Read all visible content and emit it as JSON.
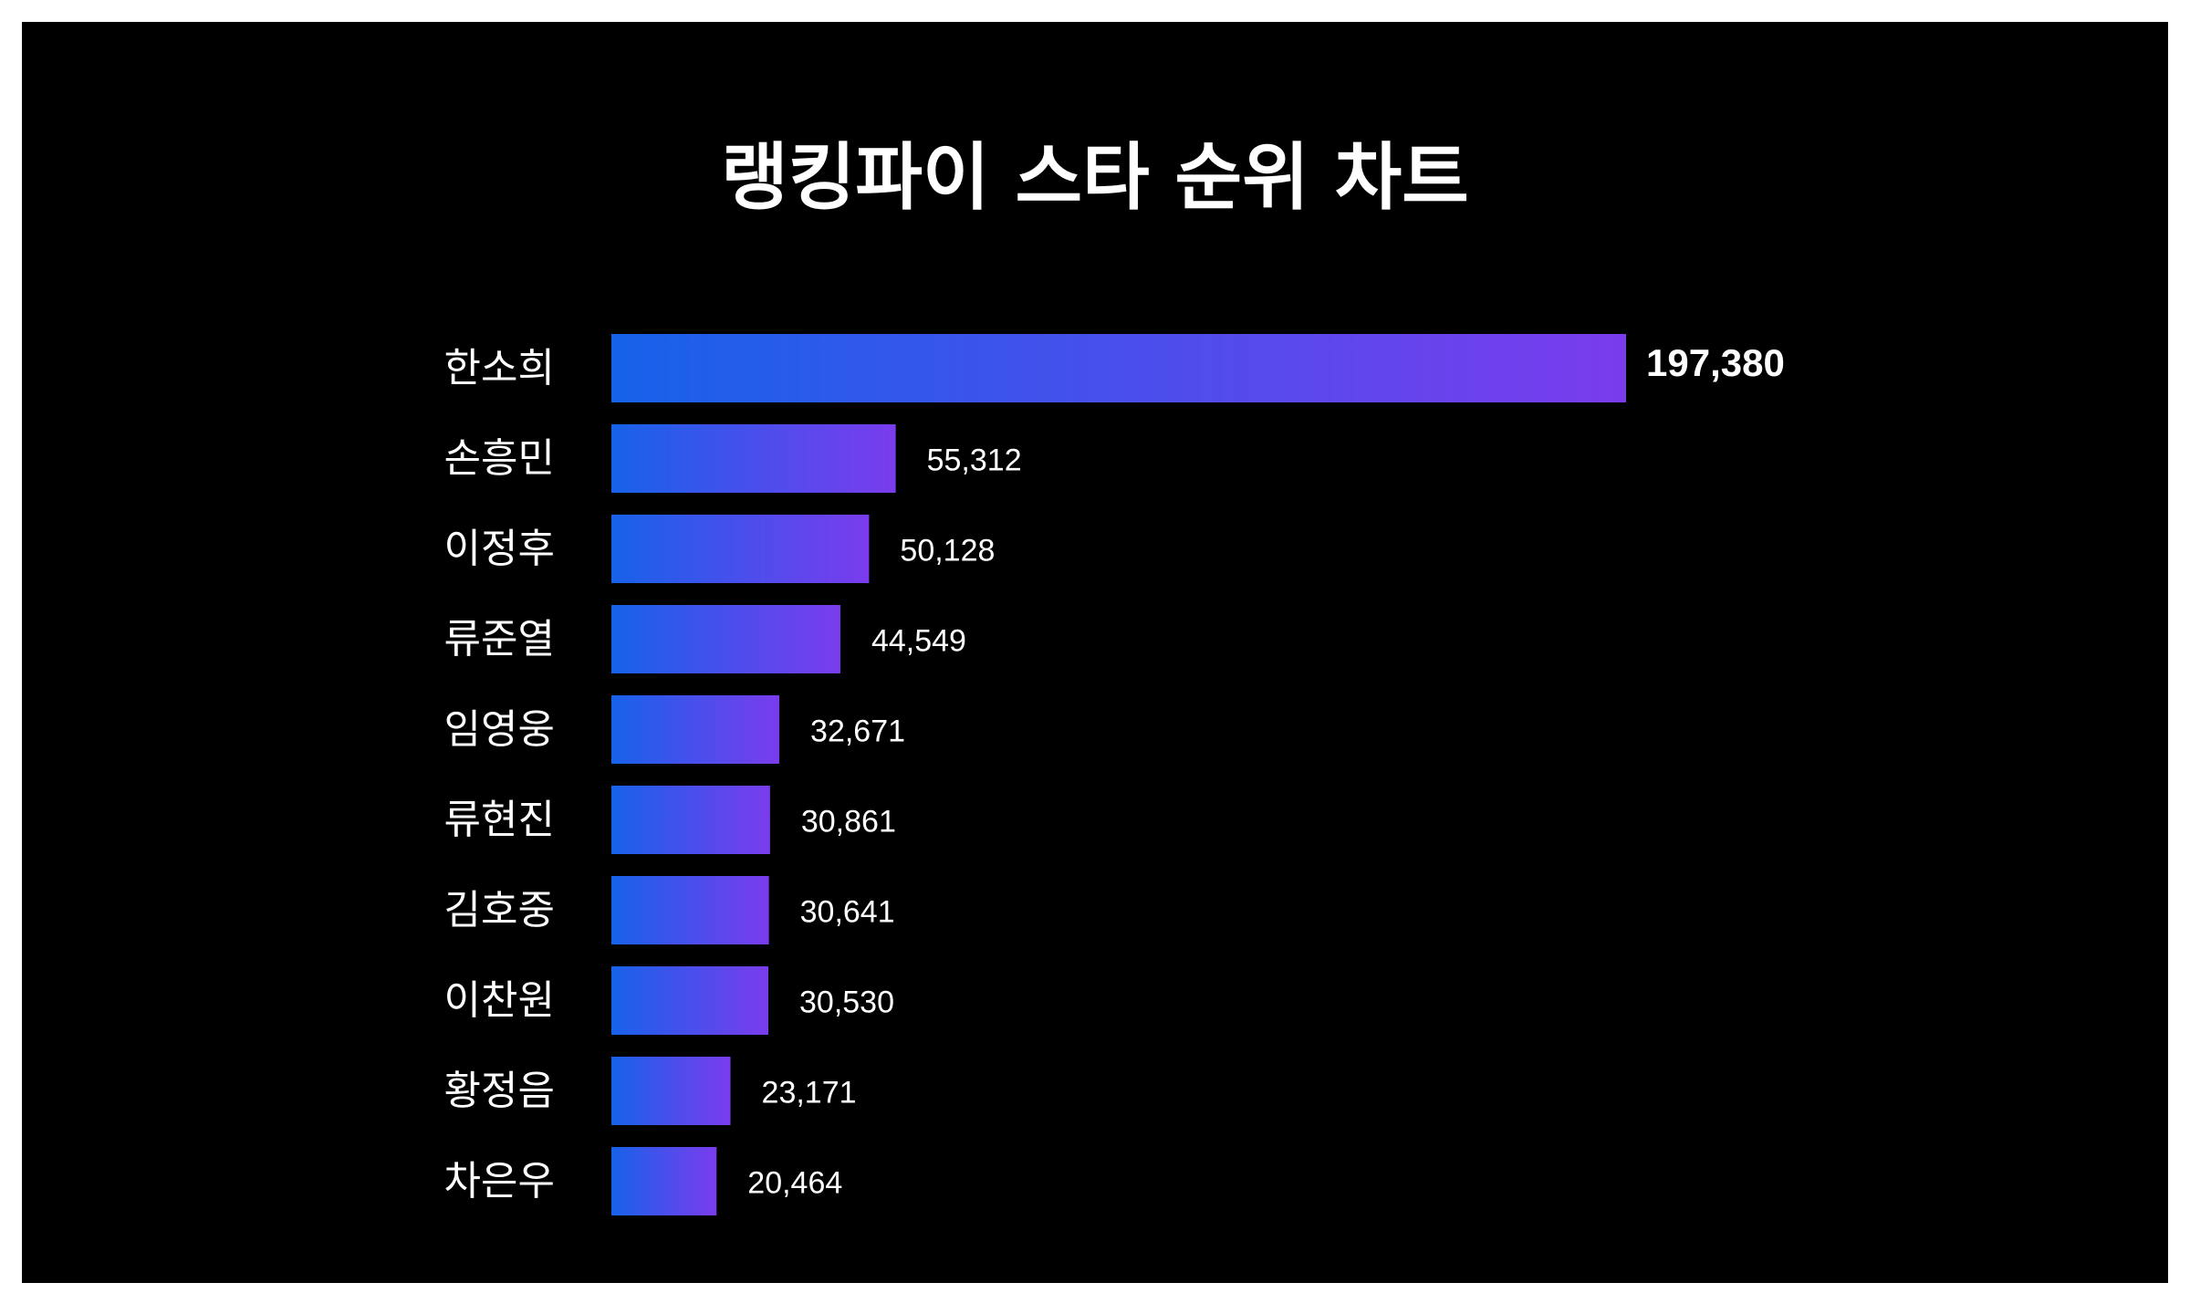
{
  "chart_data": {
    "type": "bar",
    "orientation": "horizontal",
    "title": "랭킹파이 스타 순위 차트",
    "categories": [
      "한소희",
      "손흥민",
      "이정후",
      "류준열",
      "임영웅",
      "류현진",
      "김호중",
      "이찬원",
      "황정음",
      "차은우"
    ],
    "values": [
      197380,
      55312,
      50128,
      44549,
      32671,
      30861,
      30641,
      30530,
      23171,
      20464
    ],
    "value_labels": [
      "197,380",
      "55,312",
      "50,128",
      "44,549",
      "32,671",
      "30,861",
      "30,641",
      "30,530",
      "23,171",
      "20,464"
    ],
    "xlim": [
      0,
      197380
    ],
    "grid": false,
    "legend": "none",
    "colors": {
      "background": "#000000",
      "page": "#ffffff",
      "bar_gradient_start": "#1762ea",
      "bar_gradient_end": "#7a3ced",
      "text": "#ffffff"
    }
  }
}
